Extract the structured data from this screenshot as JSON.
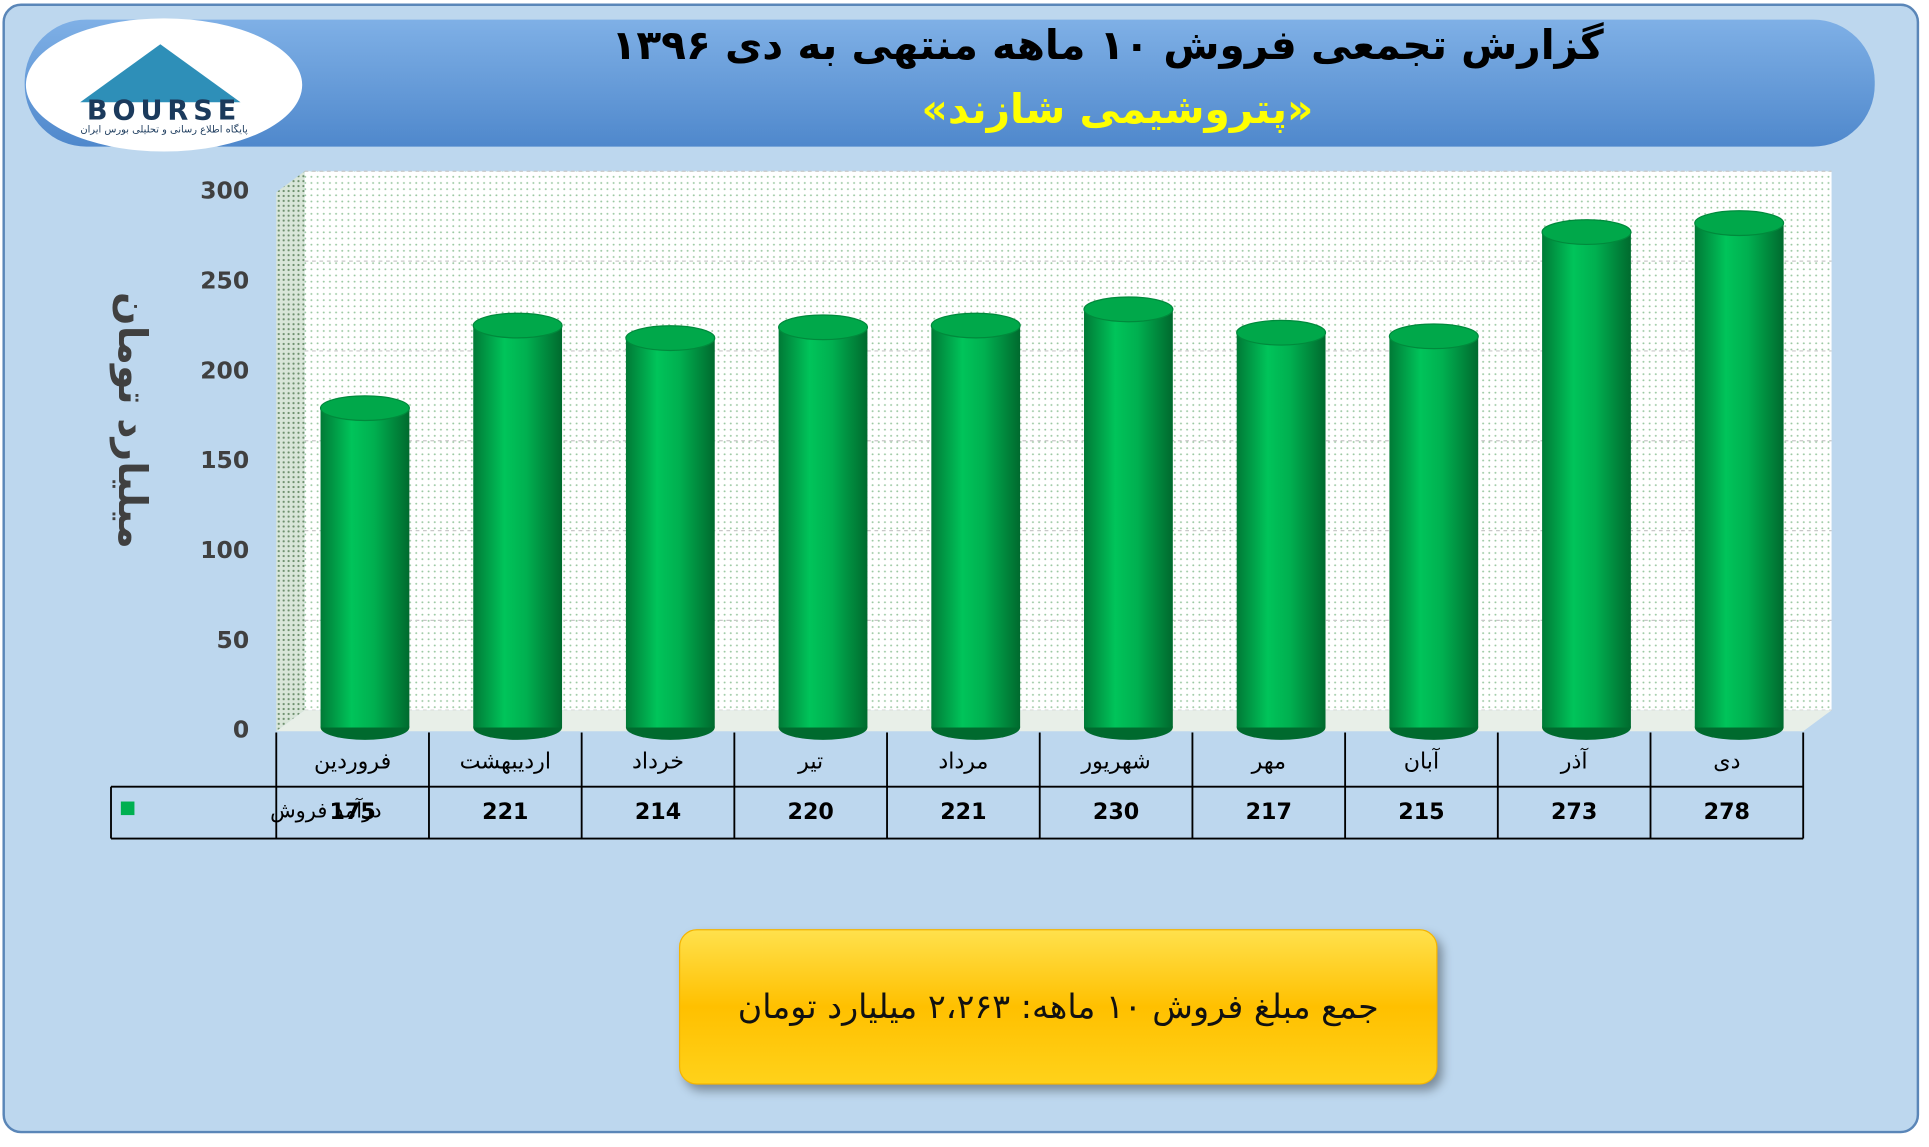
{
  "logo": {
    "text": "BOURSE",
    "subtitle": "پایگاه اطلاع رسانی و تحلیلی بورس ایران"
  },
  "chart_data": {
    "type": "bar",
    "title": "گزارش تجمعی فروش ۱۰ ماهه منتهی به دی ۱۳۹۶",
    "subtitle": "«پتروشیمی شازند»",
    "y_label": "میلیارد تومان",
    "categories": [
      "فروردین",
      "اردیبهشت",
      "خرداد",
      "تیر",
      "مرداد",
      "شهریور",
      "مهر",
      "آبان",
      "آذر",
      "دی"
    ],
    "series": [
      {
        "name": "درآمد فروش",
        "color": "#00b050",
        "values": [
          175,
          221,
          214,
          220,
          221,
          230,
          217,
          215,
          273,
          278
        ]
      }
    ],
    "ylim": [
      0,
      300
    ],
    "yticks": [
      0,
      50,
      100,
      150,
      200,
      250,
      300
    ],
    "grid": true,
    "summary": "جمع مبلغ فروش ۱۰ ماهه: ۲،۲۶۳ میلیارد تومان"
  }
}
